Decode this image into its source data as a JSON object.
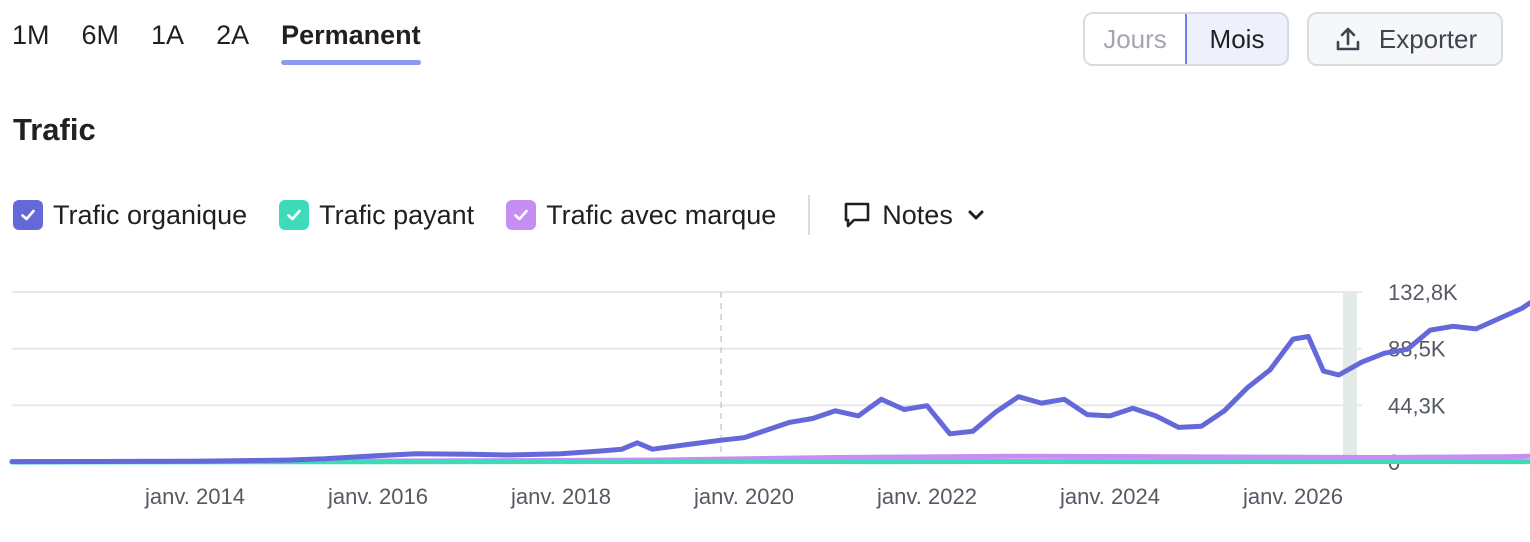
{
  "periods": {
    "items": [
      "1M",
      "6M",
      "1A",
      "2A",
      "Permanent"
    ],
    "active": "Permanent"
  },
  "granularity": {
    "days": "Jours",
    "months": "Mois",
    "selected": "Mois"
  },
  "export": {
    "label": "Exporter",
    "icon": "upload-icon"
  },
  "title": "Trafic",
  "legend": {
    "organic": {
      "label": "Trafic organique",
      "color": "#6468d8",
      "checked": true
    },
    "paid": {
      "label": "Trafic payant",
      "color": "#3ddbb8",
      "checked": true
    },
    "branded": {
      "label": "Trafic avec marque",
      "color": "#c48ef2",
      "checked": true
    },
    "notes": {
      "label": "Notes",
      "icon": "comment-icon",
      "chevron": "chevron-down-icon"
    }
  },
  "chart_data": {
    "type": "line",
    "ylim": [
      0,
      132800
    ],
    "y_ticks": [
      {
        "value": 0,
        "label": "0"
      },
      {
        "value": 44300,
        "label": "44,3K"
      },
      {
        "value": 88500,
        "label": "88,5K"
      },
      {
        "value": 132800,
        "label": "132,8K"
      }
    ],
    "x_ticks": [
      "janv. 2014",
      "janv. 2016",
      "janv. 2018",
      "janv. 2020",
      "janv. 2022",
      "janv. 2024",
      "janv. 2026"
    ],
    "grid": true,
    "legend_position": "top-left",
    "series": [
      {
        "name": "Trafic organique",
        "color": "#6468d8",
        "points": [
          [
            "2012-01",
            300
          ],
          [
            "2013-01",
            400
          ],
          [
            "2014-01",
            600
          ],
          [
            "2015-01",
            1500
          ],
          [
            "2015-06",
            2500
          ],
          [
            "2016-01",
            5000
          ],
          [
            "2016-06",
            6500
          ],
          [
            "2017-01",
            6000
          ],
          [
            "2017-06",
            5500
          ],
          [
            "2018-01",
            6500
          ],
          [
            "2018-06",
            8500
          ],
          [
            "2018-09",
            10000
          ],
          [
            "2018-11",
            15000
          ],
          [
            "2019-01",
            10000
          ],
          [
            "2019-06",
            14000
          ],
          [
            "2019-10",
            17000
          ],
          [
            "2020-01",
            19000
          ],
          [
            "2020-04",
            25000
          ],
          [
            "2020-07",
            31000
          ],
          [
            "2020-10",
            34000
          ],
          [
            "2021-01",
            40000
          ],
          [
            "2021-04",
            36000
          ],
          [
            "2021-07",
            49000
          ],
          [
            "2021-10",
            41000
          ],
          [
            "2022-01",
            44000
          ],
          [
            "2022-04",
            22000
          ],
          [
            "2022-07",
            24000
          ],
          [
            "2022-10",
            39000
          ],
          [
            "2023-01",
            51000
          ],
          [
            "2023-04",
            46000
          ],
          [
            "2023-07",
            49000
          ],
          [
            "2023-10",
            37000
          ],
          [
            "2024-01",
            36000
          ],
          [
            "2024-04",
            42000
          ],
          [
            "2024-07",
            36000
          ],
          [
            "2024-10",
            27000
          ],
          [
            "2025-01",
            28000
          ],
          [
            "2025-04",
            40000
          ],
          [
            "2025-07",
            58000
          ],
          [
            "2025-10",
            72000
          ],
          [
            "2026-01",
            96000
          ],
          [
            "2026-03",
            98000
          ],
          [
            "2026-05",
            71000
          ],
          [
            "2026-07",
            68000
          ],
          [
            "2026-10",
            78000
          ],
          [
            "2027-01",
            85000
          ],
          [
            "2027-04",
            88000
          ],
          [
            "2027-07",
            103000
          ],
          [
            "2027-10",
            106000
          ],
          [
            "2028-01",
            104000
          ],
          [
            "2028-04",
            112000
          ],
          [
            "2028-07",
            120000
          ],
          [
            "2028-10",
            132000
          ],
          [
            "2029-01",
            126000
          ],
          [
            "2029-02",
            124000
          ]
        ]
      },
      {
        "name": "Trafic payant",
        "color": "#3ddbb8",
        "points": [
          [
            "2012-01",
            0
          ],
          [
            "2020-01",
            500
          ],
          [
            "2021-06",
            300
          ],
          [
            "2023-01",
            400
          ],
          [
            "2025-01",
            300
          ],
          [
            "2027-01",
            400
          ],
          [
            "2029-02",
            300
          ]
        ]
      },
      {
        "name": "Trafic avec marque",
        "color": "#c48ef2",
        "points": [
          [
            "2012-01",
            200
          ],
          [
            "2016-01",
            800
          ],
          [
            "2019-01",
            1500
          ],
          [
            "2021-01",
            3500
          ],
          [
            "2023-01",
            4500
          ],
          [
            "2025-01",
            4000
          ],
          [
            "2027-01",
            3500
          ],
          [
            "2028-06",
            4200
          ],
          [
            "2029-02",
            5500
          ]
        ]
      }
    ]
  }
}
